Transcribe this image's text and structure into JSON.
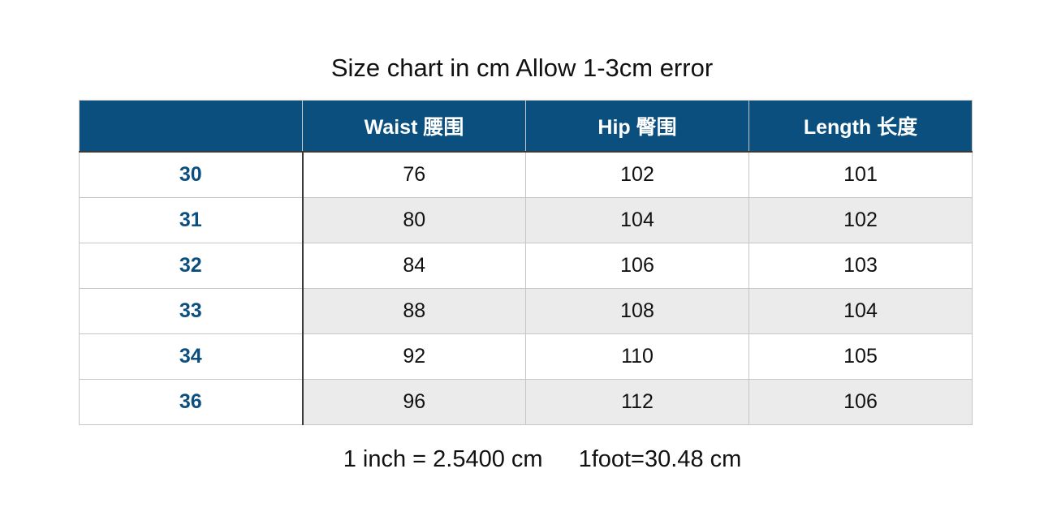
{
  "title": "Size chart in cm Allow 1-3cm error",
  "table": {
    "headers": [
      "",
      "Waist 腰围",
      "Hip 臀围",
      "Length 长度"
    ],
    "rows": [
      [
        "30",
        "76",
        "102",
        "101"
      ],
      [
        "31",
        "80",
        "104",
        "102"
      ],
      [
        "32",
        "84",
        "106",
        "103"
      ],
      [
        "33",
        "88",
        "108",
        "104"
      ],
      [
        "34",
        "92",
        "110",
        "105"
      ],
      [
        "36",
        "96",
        "112",
        "106"
      ]
    ]
  },
  "footer": {
    "inch": "1 inch = 2.5400 cm",
    "foot": "1foot=30.48 cm"
  },
  "colors": {
    "header_bg": "#0a4f7e",
    "size_text": "#0a4f7e",
    "alt_row": "#ebebeb"
  }
}
